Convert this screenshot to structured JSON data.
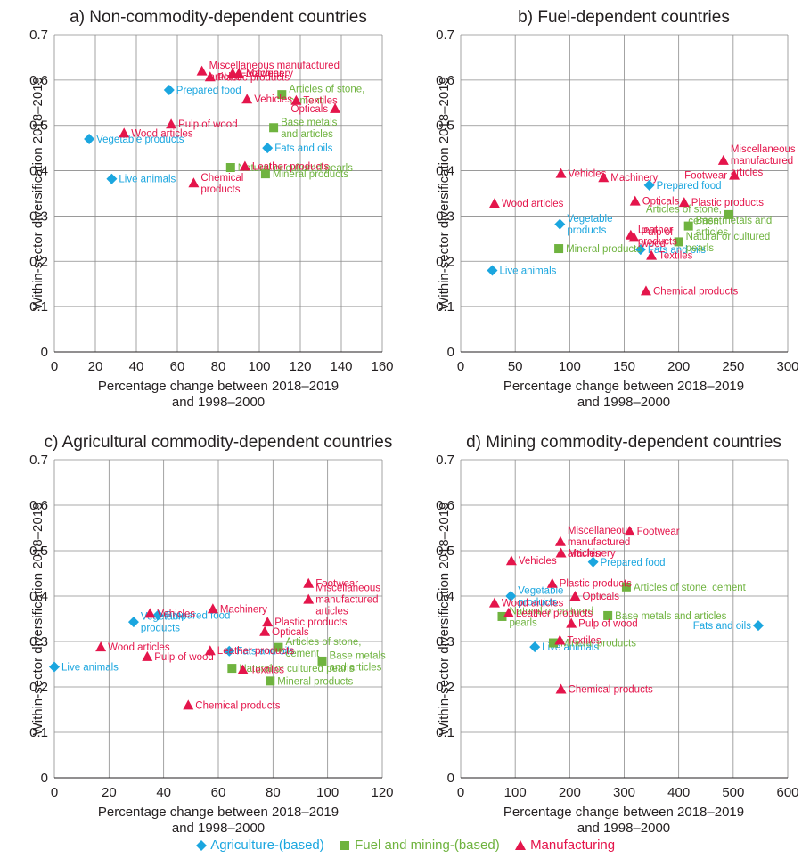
{
  "colors": {
    "Agriculture-(based)": "#1ba6df",
    "Fuel and mining-(based)": "#6fb33f",
    "Manufacturing": "#e4154b",
    "grid": "#8c8c8c",
    "text": "#231f20"
  },
  "legend": [
    {
      "name": "Agriculture-(based)",
      "marker": "diamond"
    },
    {
      "name": "Fuel and mining-(based)",
      "marker": "square"
    },
    {
      "name": "Manufacturing",
      "marker": "triangle"
    }
  ],
  "chart_data": [
    {
      "type": "scatter",
      "title": "a) Non-commodity-dependent countries",
      "xlabel": [
        "Percentage change between 2018–2019",
        "and 1998–2000"
      ],
      "ylabel": "Within-sector diversification 2018–2019",
      "xlim": [
        0,
        160
      ],
      "ylim": [
        0,
        0.7
      ],
      "xticks": [
        "0",
        "20",
        "40",
        "60",
        "80",
        "100",
        "120",
        "140",
        "160"
      ],
      "yticks": [
        "0",
        "0.1",
        "0.2",
        "0.3",
        "0.4",
        "0.5",
        "0.6",
        "0.7"
      ],
      "grid": true,
      "points": [
        {
          "label": [
            "Vegetable products"
          ],
          "group": "Agriculture-(based)",
          "x": 17,
          "y": 0.47
        },
        {
          "label": [
            "Live animals"
          ],
          "group": "Agriculture-(based)",
          "x": 28,
          "y": 0.382
        },
        {
          "label": [
            "Prepared food"
          ],
          "group": "Agriculture-(based)",
          "x": 56,
          "y": 0.578
        },
        {
          "label": [
            "Fats and oils"
          ],
          "group": "Agriculture-(based)",
          "x": 104,
          "y": 0.45
        },
        {
          "label": [
            "Natural or cultured pearls"
          ],
          "group": "Fuel and mining-(based)",
          "x": 86,
          "y": 0.407
        },
        {
          "label": [
            "Mineral products"
          ],
          "group": "Fuel and mining-(based)",
          "x": 103,
          "y": 0.393
        },
        {
          "label": [
            "Base metals",
            "and articles"
          ],
          "group": "Fuel and mining-(based)",
          "x": 107,
          "y": 0.495
        },
        {
          "label": [
            "Articles of stone,",
            "cement"
          ],
          "group": "Fuel and mining-(based)",
          "x": 111,
          "y": 0.568
        },
        {
          "label": [
            "Wood articles"
          ],
          "group": "Manufacturing",
          "x": 34,
          "y": 0.483
        },
        {
          "label": [
            "Pulp of wood"
          ],
          "group": "Manufacturing",
          "x": 57,
          "y": 0.503
        },
        {
          "label": [
            "Chemical",
            "products"
          ],
          "group": "Manufacturing",
          "x": 68,
          "y": 0.373
        },
        {
          "label": [
            "Miscellaneous manufactured",
            "articles"
          ],
          "group": "Manufacturing",
          "x": 72,
          "y": 0.62
        },
        {
          "label": [
            "Plastic products"
          ],
          "group": "Manufacturing",
          "x": 76,
          "y": 0.607
        },
        {
          "label": [
            "Footwear"
          ],
          "group": "Manufacturing",
          "x": 87,
          "y": 0.615
        },
        {
          "label": [
            "Machinery"
          ],
          "group": "Manufacturing",
          "x": 90,
          "y": 0.615
        },
        {
          "label": [
            "Leather products"
          ],
          "group": "Manufacturing",
          "x": 93,
          "y": 0.41
        },
        {
          "label": [
            "Vehicles"
          ],
          "group": "Manufacturing",
          "x": 94,
          "y": 0.558
        },
        {
          "label": [
            "Textiles"
          ],
          "group": "Manufacturing",
          "x": 118,
          "y": 0.555
        },
        {
          "label": [
            "Opticals"
          ],
          "group": "Manufacturing",
          "x": 137,
          "y": 0.537
        }
      ]
    },
    {
      "type": "scatter",
      "title": "b) Fuel-dependent countries",
      "xlabel": [
        "Percentage change between 2018–2019",
        "and 1998–2000"
      ],
      "ylabel": "Within-sector diversification 2018–2019",
      "xlim": [
        0,
        300
      ],
      "ylim": [
        0,
        0.7
      ],
      "xticks": [
        "0",
        "50",
        "100",
        "150",
        "200",
        "250",
        "300"
      ],
      "yticks": [
        "0",
        "0.1",
        "0.2",
        "0.3",
        "0.4",
        "0.5",
        "0.6",
        "0.7"
      ],
      "grid": true,
      "points": [
        {
          "label": [
            "Live animals"
          ],
          "group": "Agriculture-(based)",
          "x": 29,
          "y": 0.18
        },
        {
          "label": [
            "Vegetable",
            "products"
          ],
          "group": "Agriculture-(based)",
          "x": 91,
          "y": 0.282
        },
        {
          "label": [
            "Fats and oils"
          ],
          "group": "Agriculture-(based)",
          "x": 165,
          "y": 0.226
        },
        {
          "label": [
            "Prepared food"
          ],
          "group": "Agriculture-(based)",
          "x": 173,
          "y": 0.368
        },
        {
          "label": [
            "Mineral products"
          ],
          "group": "Fuel and mining-(based)",
          "x": 90,
          "y": 0.228
        },
        {
          "label": [
            "Natural or cultured",
            "pearls"
          ],
          "group": "Fuel and mining-(based)",
          "x": 200,
          "y": 0.243
        },
        {
          "label": [
            "Base metals and",
            "articles"
          ],
          "group": "Fuel and mining-(based)",
          "x": 209,
          "y": 0.278
        },
        {
          "label": [
            "Articles of stone,",
            "cement"
          ],
          "group": "Fuel and mining-(based)",
          "x": 246,
          "y": 0.303
        },
        {
          "label": [
            "Wood articles"
          ],
          "group": "Manufacturing",
          "x": 31,
          "y": 0.328
        },
        {
          "label": [
            "Vehicles"
          ],
          "group": "Manufacturing",
          "x": 92,
          "y": 0.394
        },
        {
          "label": [
            "Machinery"
          ],
          "group": "Manufacturing",
          "x": 131,
          "y": 0.385
        },
        {
          "label": [
            "Opticals"
          ],
          "group": "Manufacturing",
          "x": 160,
          "y": 0.333
        },
        {
          "label": [
            "Leather",
            "products"
          ],
          "group": "Manufacturing",
          "x": 156,
          "y": 0.258
        },
        {
          "label": [
            "Pulp of",
            "wood"
          ],
          "group": "Manufacturing",
          "x": 159,
          "y": 0.253
        },
        {
          "label": [
            "Chemical products"
          ],
          "group": "Manufacturing",
          "x": 170,
          "y": 0.135
        },
        {
          "label": [
            "Textiles"
          ],
          "group": "Manufacturing",
          "x": 175,
          "y": 0.213
        },
        {
          "label": [
            "Plastic products"
          ],
          "group": "Manufacturing",
          "x": 205,
          "y": 0.33
        },
        {
          "label": [
            "Miscellaneous",
            "manufactured",
            "articles"
          ],
          "group": "Manufacturing",
          "x": 241,
          "y": 0.423
        },
        {
          "label": [
            "Footwear"
          ],
          "group": "Manufacturing",
          "x": 251,
          "y": 0.39
        }
      ]
    },
    {
      "type": "scatter",
      "title": "c) Agricultural commodity-dependent countries",
      "xlabel": [
        "Percentage change between 2018–2019",
        "and 1998–2000"
      ],
      "ylabel": "Within-sector diversification 2018–2019",
      "xlim": [
        0,
        120
      ],
      "ylim": [
        0,
        0.7
      ],
      "xticks": [
        "0",
        "20",
        "40",
        "60",
        "80",
        "100",
        "120"
      ],
      "yticks": [
        "0",
        "0.1",
        "0.2",
        "0.3",
        "0.4",
        "0.5",
        "0.6",
        "0.7"
      ],
      "grid": true,
      "points": [
        {
          "label": [
            "Live animals"
          ],
          "group": "Agriculture-(based)",
          "x": 0,
          "y": 0.244
        },
        {
          "label": [
            "Vegetable",
            "products"
          ],
          "group": "Agriculture-(based)",
          "x": 29,
          "y": 0.343
        },
        {
          "label": [
            "Prepared food"
          ],
          "group": "Agriculture-(based)",
          "x": 38,
          "y": 0.358
        },
        {
          "label": [
            "Fats and oils"
          ],
          "group": "Agriculture-(based)",
          "x": 64,
          "y": 0.279
        },
        {
          "label": [
            "Natural or cultured pearls"
          ],
          "group": "Fuel and mining-(based)",
          "x": 65,
          "y": 0.241
        },
        {
          "label": [
            "Mineral products"
          ],
          "group": "Fuel and mining-(based)",
          "x": 79,
          "y": 0.213
        },
        {
          "label": [
            "Articles of stone,",
            "cement"
          ],
          "group": "Fuel and mining-(based)",
          "x": 82,
          "y": 0.287
        },
        {
          "label": [
            "Base metals",
            "and articles"
          ],
          "group": "Fuel and mining-(based)",
          "x": 98,
          "y": 0.257
        },
        {
          "label": [
            "Wood articles"
          ],
          "group": "Manufacturing",
          "x": 17,
          "y": 0.288
        },
        {
          "label": [
            "Pulp of wood"
          ],
          "group": "Manufacturing",
          "x": 34,
          "y": 0.267
        },
        {
          "label": [
            "Vehicles"
          ],
          "group": "Manufacturing",
          "x": 35,
          "y": 0.362
        },
        {
          "label": [
            "Chemical products"
          ],
          "group": "Manufacturing",
          "x": 49,
          "y": 0.16
        },
        {
          "label": [
            "Leather products"
          ],
          "group": "Manufacturing",
          "x": 57,
          "y": 0.28
        },
        {
          "label": [
            "Machinery"
          ],
          "group": "Manufacturing",
          "x": 58,
          "y": 0.372
        },
        {
          "label": [
            "Textiles"
          ],
          "group": "Manufacturing",
          "x": 69,
          "y": 0.238
        },
        {
          "label": [
            "Opticals"
          ],
          "group": "Manufacturing",
          "x": 77,
          "y": 0.322
        },
        {
          "label": [
            "Plastic products"
          ],
          "group": "Manufacturing",
          "x": 78,
          "y": 0.343
        },
        {
          "label": [
            "Miscellaneous",
            "manufactured",
            "articles"
          ],
          "group": "Manufacturing",
          "x": 93,
          "y": 0.393
        },
        {
          "label": [
            "Footwear"
          ],
          "group": "Manufacturing",
          "x": 93,
          "y": 0.428
        }
      ]
    },
    {
      "type": "scatter",
      "title": "d) Mining commodity-dependent countries",
      "xlabel": [
        "Percentage change between 2018–2019",
        "and 1998–2000"
      ],
      "ylabel": "Within-sector diversification 2018–2019",
      "xlim": [
        0,
        600
      ],
      "ylim": [
        0,
        0.7
      ],
      "xticks": [
        "0",
        "100",
        "200",
        "300",
        "400",
        "500",
        "600"
      ],
      "yticks": [
        "0",
        "0.1",
        "0.2",
        "0.3",
        "0.4",
        "0.5",
        "0.6",
        "0.7"
      ],
      "grid": true,
      "points": [
        {
          "label": [
            "Vegetable",
            "products"
          ],
          "group": "Agriculture-(based)",
          "x": 92,
          "y": 0.4
        },
        {
          "label": [
            "Live animals"
          ],
          "group": "Agriculture-(based)",
          "x": 136,
          "y": 0.288
        },
        {
          "label": [
            "Prepared food"
          ],
          "group": "Agriculture-(based)",
          "x": 243,
          "y": 0.475
        },
        {
          "label": [
            "Fats and oils"
          ],
          "group": "Agriculture-(based)",
          "x": 546,
          "y": 0.335
        },
        {
          "label": [
            "Natural or cultured",
            "pearls"
          ],
          "group": "Fuel and mining-(based)",
          "x": 76,
          "y": 0.355
        },
        {
          "label": [
            "Mineral products"
          ],
          "group": "Fuel and mining-(based)",
          "x": 170,
          "y": 0.297
        },
        {
          "label": [
            "Base metals and articles"
          ],
          "group": "Fuel and mining-(based)",
          "x": 270,
          "y": 0.357
        },
        {
          "label": [
            "Articles of stone, cement"
          ],
          "group": "Fuel and mining-(based)",
          "x": 304,
          "y": 0.42
        },
        {
          "label": [
            "Wood articles"
          ],
          "group": "Manufacturing",
          "x": 62,
          "y": 0.385
        },
        {
          "label": [
            "Leather products"
          ],
          "group": "Manufacturing",
          "x": 88,
          "y": 0.363
        },
        {
          "label": [
            "Vehicles"
          ],
          "group": "Manufacturing",
          "x": 93,
          "y": 0.478
        },
        {
          "label": [
            "Plastic products"
          ],
          "group": "Manufacturing",
          "x": 168,
          "y": 0.428
        },
        {
          "label": [
            "Textiles"
          ],
          "group": "Manufacturing",
          "x": 182,
          "y": 0.303
        },
        {
          "label": [
            "Chemical products"
          ],
          "group": "Manufacturing",
          "x": 184,
          "y": 0.195
        },
        {
          "label": [
            "Miscellaneous",
            "manufactured",
            "articles"
          ],
          "group": "Manufacturing",
          "x": 183,
          "y": 0.52
        },
        {
          "label": [
            "Machinery"
          ],
          "group": "Manufacturing",
          "x": 184,
          "y": 0.495
        },
        {
          "label": [
            "Pulp of wood"
          ],
          "group": "Manufacturing",
          "x": 203,
          "y": 0.34
        },
        {
          "label": [
            "Opticals"
          ],
          "group": "Manufacturing",
          "x": 210,
          "y": 0.4
        },
        {
          "label": [
            "Footwear"
          ],
          "group": "Manufacturing",
          "x": 310,
          "y": 0.543
        }
      ]
    }
  ]
}
